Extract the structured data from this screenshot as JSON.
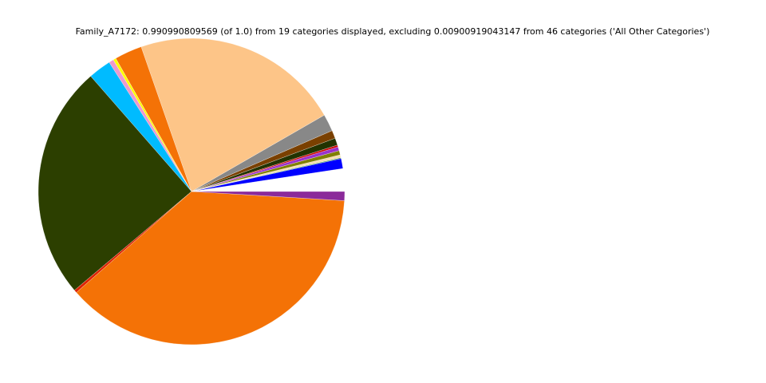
{
  "chart_data": {
    "type": "pie",
    "title": "Family_A7172: 0.990990809569 (of 1.0) from 19 categories displayed, excluding 0.00900919043147 from 46 categories ('All Other Categories')",
    "start_angle_deg": 0,
    "direction": "counterclockwise",
    "legend": "none",
    "slices": [
      {
        "value": 0.024,
        "color": "#ffffff"
      },
      {
        "value": 0.0105,
        "color": "#0000ff"
      },
      {
        "value": 0.001,
        "color": "#2e8b57"
      },
      {
        "value": 0.003,
        "color": "#f5deb3"
      },
      {
        "value": 0.0045,
        "color": "#808000"
      },
      {
        "value": 0.004,
        "color": "#9932cc"
      },
      {
        "value": 0.002,
        "color": "#cc0000"
      },
      {
        "value": 0.0075,
        "color": "#223300"
      },
      {
        "value": 0.0085,
        "color": "#7a4000"
      },
      {
        "value": 0.018,
        "color": "#888888"
      },
      {
        "value": 0.22,
        "color": "#fdc588"
      },
      {
        "value": 0.029,
        "color": "#f47206"
      },
      {
        "value": 0.003,
        "color": "#ffff00"
      },
      {
        "value": 0.005,
        "color": "#ee99cc"
      },
      {
        "value": 0.024,
        "color": "#00bbff"
      },
      {
        "value": 0.247,
        "color": "#2c3f00"
      },
      {
        "value": 0.003,
        "color": "#dd2200"
      },
      {
        "value": 0.3755,
        "color": "#f47206"
      },
      {
        "value": 0.0095,
        "color": "#8b2a9a"
      }
    ]
  }
}
